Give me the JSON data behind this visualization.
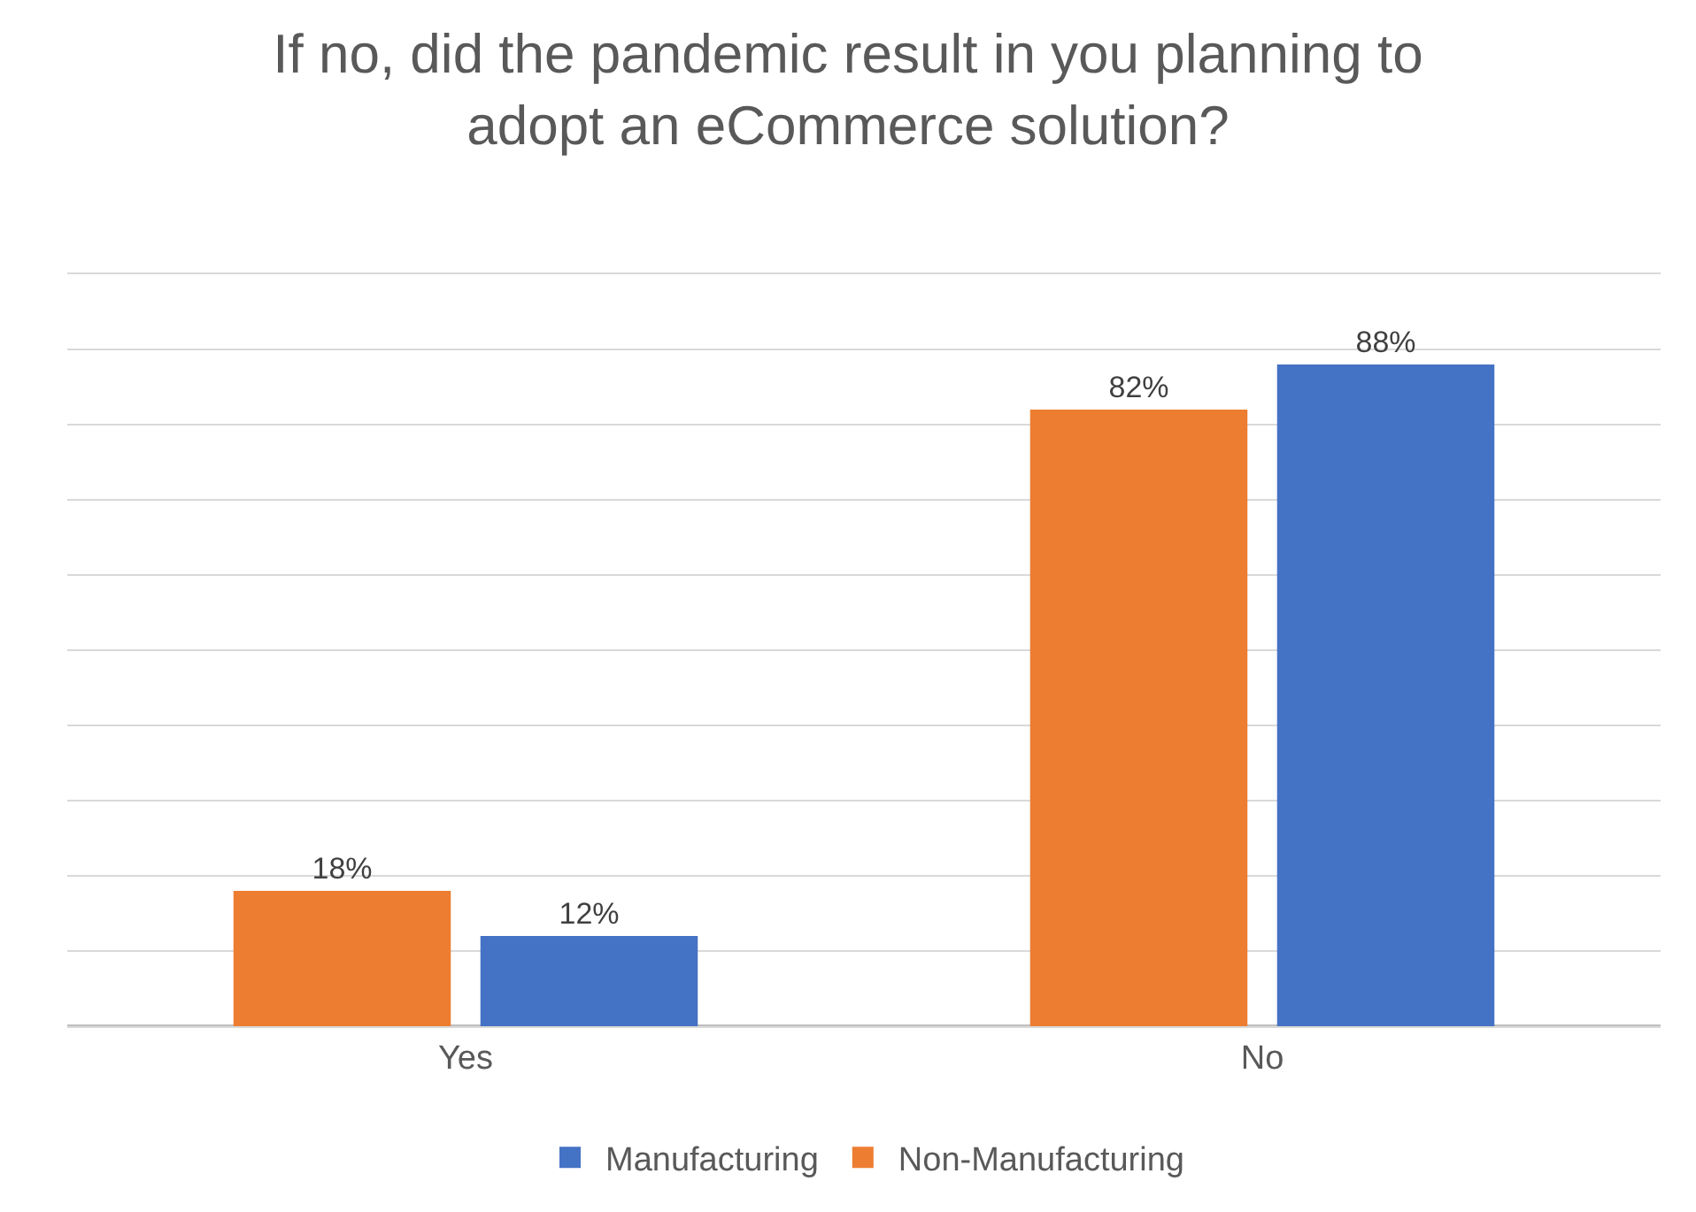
{
  "chart_data": {
    "type": "bar",
    "title": "If no, did the pandemic result in you planning to adopt an eCommerce solution?",
    "categories": [
      "Yes",
      "No"
    ],
    "series": [
      {
        "name": "Non-Manufacturing",
        "color": "#ed7d31",
        "values": [
          18,
          82
        ],
        "value_labels": [
          "18%",
          "82%"
        ]
      },
      {
        "name": "Manufacturing",
        "color": "#4472c4",
        "values": [
          12,
          88
        ],
        "value_labels": [
          "12%",
          "88%"
        ]
      }
    ],
    "ylim": [
      0,
      100
    ],
    "yticks": [
      {
        "value": 0,
        "label": null
      },
      {
        "value": 10,
        "label": null
      },
      {
        "value": 20,
        "label": null
      },
      {
        "value": 30,
        "label": null
      },
      {
        "value": 40,
        "label": null
      },
      {
        "value": 50,
        "label": null
      },
      {
        "value": 60,
        "label": null
      },
      {
        "value": 70,
        "label": null
      },
      {
        "value": 80,
        "label": null
      },
      {
        "value": 90,
        "label": null
      },
      {
        "value": 100,
        "label": null
      }
    ],
    "tick_labels": "x",
    "grid": "y",
    "legend": "bottom"
  }
}
